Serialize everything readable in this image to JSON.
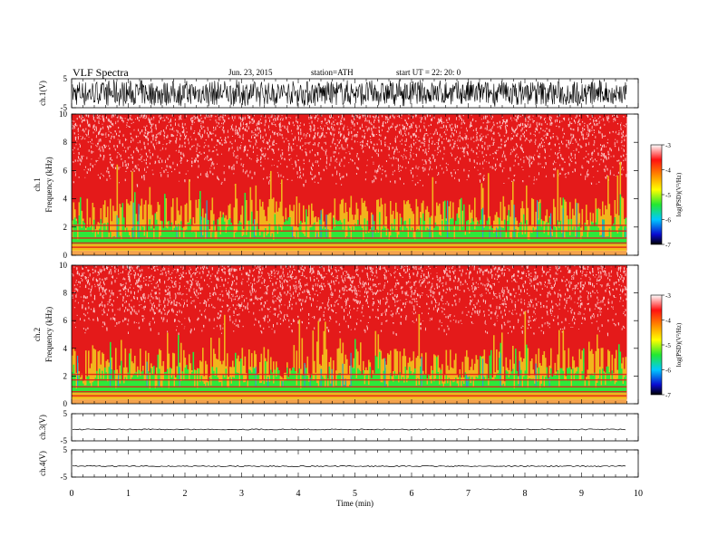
{
  "header": {
    "title": "VLF  Spectra",
    "date": "Jun. 23, 2015",
    "station": "station=ATH",
    "start": "start  UT  =    22: 20: 0"
  },
  "colors": {
    "spec_high": "#e41a1a",
    "spec_mid": "#2ee83a",
    "spec_low": "#0a20c8",
    "trace": "#000000"
  },
  "chart_data": [
    {
      "type": "line",
      "name": "ch1-waveform",
      "ylabel": "ch.1(V)",
      "ylim": [
        -5,
        5
      ],
      "yticks": [
        "5",
        "-5"
      ],
      "xlim": [
        0,
        10
      ]
    },
    {
      "type": "heatmap",
      "name": "ch1-spectrogram",
      "ylabel_top": "ch.1",
      "ylabel": "Frequency  (kHz)",
      "ylim": [
        0,
        10
      ],
      "yticks": [
        "0",
        "2",
        "4",
        "6",
        "8",
        "10"
      ],
      "xlim": [
        0,
        9.8
      ],
      "colorbar": {
        "label": "log(PSD)(V²/Hz)",
        "range": [
          -7,
          -3
        ],
        "ticks": [
          "-3",
          "-4",
          "-5",
          "-6",
          "-7"
        ]
      }
    },
    {
      "type": "heatmap",
      "name": "ch2-spectrogram",
      "ylabel_top": "ch.2",
      "ylabel": "Frequency  (kHz)",
      "ylim": [
        0,
        10
      ],
      "yticks": [
        "0",
        "2",
        "4",
        "6",
        "8",
        "10"
      ],
      "xlim": [
        0,
        9.8
      ],
      "colorbar": {
        "label": "log(PSD)(V²/Hz)",
        "range": [
          -7,
          -3
        ],
        "ticks": [
          "-3",
          "-4",
          "-5",
          "-6",
          "-7"
        ]
      }
    },
    {
      "type": "line",
      "name": "ch3-waveform",
      "ylabel": "ch.3(V)",
      "ylim": [
        -5,
        5
      ],
      "yticks": [
        "5",
        "-5"
      ],
      "level": -0.8
    },
    {
      "type": "line",
      "name": "ch4-waveform",
      "ylabel": "ch.4(V)",
      "ylim": [
        -5,
        5
      ],
      "yticks": [
        "5",
        "-5"
      ],
      "level": -1.0
    }
  ],
  "xaxis": {
    "label": "Time  (min)",
    "ticks": [
      "0",
      "1",
      "2",
      "3",
      "4",
      "5",
      "6",
      "7",
      "8",
      "9",
      "10"
    ],
    "range": [
      0,
      10
    ]
  }
}
